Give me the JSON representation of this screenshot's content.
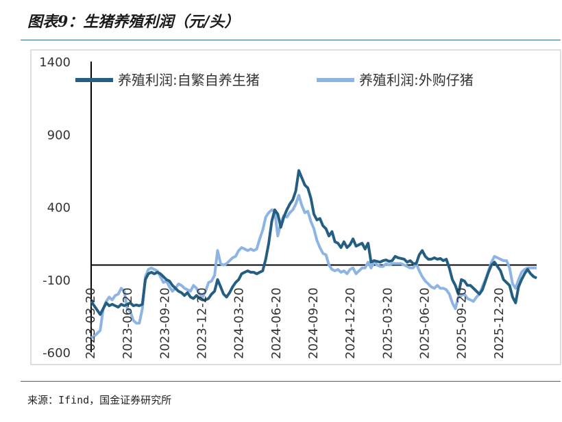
{
  "figure_title": "图表9：生猪养殖利润（元/头）",
  "source": "来源：Ifind，国金证券研究所",
  "colors": {
    "series_1": "#245e80",
    "series_2": "#8db4e2",
    "zero_line": "#000000",
    "frame": "#bfbfbf"
  },
  "chart_data": {
    "type": "line",
    "title": "生猪养殖利润（元/头）",
    "xlabel": "",
    "ylabel": "元/头",
    "ylim": [
      -600,
      1400
    ],
    "yticks": [
      1400,
      900,
      400,
      -100,
      -600
    ],
    "ytick_labels": [
      "1400",
      "900",
      "400",
      "-100",
      "-600"
    ],
    "xtick_labels": [
      "2023-03-20",
      "2023-06-20",
      "2023-09-20",
      "2023-12-20",
      "2024-03-20",
      "2024-06-20",
      "2024-09-20",
      "2024-12-20",
      "2025-03-20",
      "2025-06-20",
      "2025-09-20",
      "2025-12-20"
    ],
    "x_range_weeks": [
      0,
      148
    ],
    "series": [
      {
        "name": "养殖利润:自繁自养生猪",
        "points": [
          [
            0,
            -250
          ],
          [
            1,
            -280
          ],
          [
            2,
            -310
          ],
          [
            3,
            -340
          ],
          [
            4,
            -300
          ],
          [
            5,
            -260
          ],
          [
            6,
            -280
          ],
          [
            7,
            -270
          ],
          [
            8,
            -280
          ],
          [
            9,
            -290
          ],
          [
            10,
            -270
          ],
          [
            11,
            -280
          ],
          [
            12,
            -270
          ],
          [
            13,
            -260
          ],
          [
            14,
            -280
          ],
          [
            15,
            -275
          ],
          [
            16,
            -280
          ],
          [
            17,
            -270
          ],
          [
            18,
            -100
          ],
          [
            19,
            -60
          ],
          [
            20,
            -50
          ],
          [
            21,
            -60
          ],
          [
            22,
            -50
          ],
          [
            23,
            -60
          ],
          [
            24,
            -80
          ],
          [
            25,
            -100
          ],
          [
            26,
            -110
          ],
          [
            27,
            -140
          ],
          [
            28,
            -160
          ],
          [
            29,
            -180
          ],
          [
            30,
            -190
          ],
          [
            31,
            -210
          ],
          [
            32,
            -190
          ],
          [
            33,
            -220
          ],
          [
            34,
            -230
          ],
          [
            35,
            -210
          ],
          [
            36,
            -230
          ],
          [
            37,
            -240
          ],
          [
            38,
            -240
          ],
          [
            39,
            -230
          ],
          [
            40,
            -200
          ],
          [
            41,
            -180
          ],
          [
            42,
            -100
          ],
          [
            43,
            -150
          ],
          [
            44,
            -200
          ],
          [
            45,
            -220
          ],
          [
            46,
            -190
          ],
          [
            47,
            -150
          ],
          [
            48,
            -120
          ],
          [
            49,
            -100
          ],
          [
            50,
            -60
          ],
          [
            51,
            -50
          ],
          [
            52,
            -40
          ],
          [
            53,
            -50
          ],
          [
            54,
            -50
          ],
          [
            55,
            -60
          ],
          [
            56,
            -50
          ],
          [
            57,
            -40
          ],
          [
            58,
            40
          ],
          [
            59,
            150
          ],
          [
            60,
            300
          ],
          [
            61,
            380
          ],
          [
            62,
            350
          ],
          [
            63,
            260
          ],
          [
            64,
            330
          ],
          [
            65,
            380
          ],
          [
            66,
            420
          ],
          [
            67,
            450
          ],
          [
            68,
            510
          ],
          [
            69,
            650
          ],
          [
            70,
            600
          ],
          [
            71,
            550
          ],
          [
            72,
            530
          ],
          [
            73,
            460
          ],
          [
            74,
            350
          ],
          [
            75,
            310
          ],
          [
            76,
            320
          ],
          [
            77,
            270
          ],
          [
            78,
            250
          ],
          [
            79,
            200
          ],
          [
            80,
            230
          ],
          [
            81,
            160
          ],
          [
            82,
            150
          ],
          [
            83,
            120
          ],
          [
            84,
            160
          ],
          [
            85,
            120
          ],
          [
            86,
            140
          ],
          [
            87,
            180
          ],
          [
            88,
            130
          ],
          [
            89,
            140
          ],
          [
            90,
            150
          ],
          [
            91,
            110
          ],
          [
            92,
            150
          ],
          [
            93,
            20
          ],
          [
            94,
            30
          ],
          [
            95,
            25
          ],
          [
            96,
            20
          ],
          [
            97,
            30
          ],
          [
            98,
            35
          ],
          [
            99,
            25
          ],
          [
            100,
            30
          ],
          [
            101,
            60
          ],
          [
            102,
            50
          ],
          [
            103,
            45
          ],
          [
            104,
            40
          ],
          [
            105,
            20
          ],
          [
            106,
            30
          ],
          [
            107,
            10
          ],
          [
            108,
            10
          ],
          [
            109,
            70
          ],
          [
            110,
            100
          ],
          [
            111,
            60
          ],
          [
            112,
            40
          ],
          [
            113,
            40
          ],
          [
            114,
            50
          ],
          [
            115,
            40
          ],
          [
            116,
            45
          ],
          [
            117,
            30
          ],
          [
            118,
            40
          ],
          [
            119,
            -20
          ],
          [
            120,
            -100
          ],
          [
            121,
            -140
          ],
          [
            122,
            -200
          ],
          [
            123,
            -100
          ],
          [
            124,
            -110
          ],
          [
            125,
            -140
          ],
          [
            126,
            -140
          ],
          [
            127,
            -160
          ],
          [
            128,
            -180
          ],
          [
            129,
            -200
          ],
          [
            130,
            -170
          ],
          [
            131,
            -110
          ],
          [
            132,
            -50
          ],
          [
            133,
            0
          ],
          [
            134,
            20
          ],
          [
            135,
            -10
          ],
          [
            136,
            -40
          ],
          [
            137,
            -100
          ],
          [
            138,
            -120
          ],
          [
            139,
            -140
          ],
          [
            140,
            -220
          ],
          [
            141,
            -260
          ],
          [
            142,
            -150
          ],
          [
            143,
            -100
          ],
          [
            144,
            -60
          ],
          [
            145,
            -30
          ],
          [
            146,
            -60
          ],
          [
            147,
            -80
          ],
          [
            148,
            -90
          ]
        ]
      },
      {
        "name": "养殖利润:外购仔猪",
        "points": [
          [
            0,
            -500
          ],
          [
            1,
            -490
          ],
          [
            2,
            -470
          ],
          [
            3,
            -450
          ],
          [
            4,
            -300
          ],
          [
            5,
            -250
          ],
          [
            6,
            -220
          ],
          [
            7,
            -240
          ],
          [
            8,
            -210
          ],
          [
            9,
            -200
          ],
          [
            10,
            -160
          ],
          [
            11,
            -180
          ],
          [
            12,
            -300
          ],
          [
            13,
            -320
          ],
          [
            14,
            -380
          ],
          [
            15,
            -400
          ],
          [
            16,
            -400
          ],
          [
            17,
            -300
          ],
          [
            18,
            -80
          ],
          [
            19,
            -30
          ],
          [
            20,
            -20
          ],
          [
            21,
            -30
          ],
          [
            22,
            -40
          ],
          [
            23,
            -80
          ],
          [
            24,
            -120
          ],
          [
            25,
            -110
          ],
          [
            26,
            -150
          ],
          [
            27,
            -180
          ],
          [
            28,
            -160
          ],
          [
            29,
            -130
          ],
          [
            30,
            -140
          ],
          [
            31,
            -160
          ],
          [
            32,
            -170
          ],
          [
            33,
            -180
          ],
          [
            34,
            -140
          ],
          [
            35,
            -160
          ],
          [
            36,
            -200
          ],
          [
            37,
            -220
          ],
          [
            38,
            -180
          ],
          [
            39,
            -120
          ],
          [
            40,
            -110
          ],
          [
            41,
            -70
          ],
          [
            42,
            100
          ],
          [
            43,
            10
          ],
          [
            44,
            0
          ],
          [
            45,
            10
          ],
          [
            46,
            30
          ],
          [
            47,
            50
          ],
          [
            48,
            60
          ],
          [
            49,
            100
          ],
          [
            50,
            120
          ],
          [
            51,
            110
          ],
          [
            52,
            100
          ],
          [
            53,
            110
          ],
          [
            54,
            100
          ],
          [
            55,
            110
          ],
          [
            56,
            180
          ],
          [
            57,
            240
          ],
          [
            58,
            330
          ],
          [
            59,
            360
          ],
          [
            60,
            380
          ],
          [
            61,
            370
          ],
          [
            62,
            200
          ],
          [
            63,
            290
          ],
          [
            64,
            340
          ],
          [
            65,
            330
          ],
          [
            66,
            360
          ],
          [
            67,
            380
          ],
          [
            68,
            420
          ],
          [
            69,
            480
          ],
          [
            70,
            410
          ],
          [
            71,
            360
          ],
          [
            72,
            370
          ],
          [
            73,
            300
          ],
          [
            74,
            250
          ],
          [
            75,
            170
          ],
          [
            76,
            120
          ],
          [
            77,
            80
          ],
          [
            78,
            70
          ],
          [
            79,
            0
          ],
          [
            80,
            -30
          ],
          [
            81,
            -40
          ],
          [
            82,
            -30
          ],
          [
            83,
            -50
          ],
          [
            84,
            -40
          ],
          [
            85,
            -60
          ],
          [
            86,
            -30
          ],
          [
            87,
            -20
          ],
          [
            88,
            -60
          ],
          [
            89,
            -40
          ],
          [
            90,
            -20
          ],
          [
            91,
            -20
          ],
          [
            92,
            20
          ],
          [
            93,
            -20
          ],
          [
            94,
            20
          ],
          [
            95,
            0
          ],
          [
            96,
            -10
          ],
          [
            97,
            -10
          ],
          [
            98,
            10
          ],
          [
            99,
            0
          ],
          [
            100,
            10
          ],
          [
            101,
            10
          ],
          [
            102,
            10
          ],
          [
            103,
            10
          ],
          [
            104,
            0
          ],
          [
            105,
            -10
          ],
          [
            106,
            -20
          ],
          [
            107,
            -20
          ],
          [
            108,
            10
          ],
          [
            109,
            -40
          ],
          [
            110,
            -80
          ],
          [
            111,
            -110
          ],
          [
            112,
            -130
          ],
          [
            113,
            -150
          ],
          [
            114,
            -160
          ],
          [
            115,
            -140
          ],
          [
            116,
            -160
          ],
          [
            117,
            -160
          ],
          [
            118,
            -170
          ],
          [
            119,
            -200
          ],
          [
            120,
            -260
          ],
          [
            121,
            -300
          ],
          [
            122,
            -220
          ],
          [
            123,
            -210
          ],
          [
            124,
            -200
          ],
          [
            125,
            -230
          ],
          [
            126,
            -240
          ],
          [
            127,
            -250
          ],
          [
            128,
            -220
          ],
          [
            129,
            -200
          ],
          [
            130,
            -150
          ],
          [
            131,
            -100
          ],
          [
            132,
            -40
          ],
          [
            133,
            20
          ],
          [
            134,
            60
          ],
          [
            135,
            50
          ],
          [
            136,
            40
          ],
          [
            137,
            30
          ],
          [
            138,
            30
          ],
          [
            139,
            -20
          ],
          [
            140,
            -130
          ],
          [
            141,
            -160
          ],
          [
            142,
            -100
          ],
          [
            143,
            -50
          ],
          [
            144,
            -30
          ],
          [
            145,
            -20
          ],
          [
            146,
            -20
          ],
          [
            147,
            -20
          ],
          [
            148,
            -20
          ]
        ]
      }
    ],
    "legend": {
      "position": "top",
      "entries": [
        "养殖利润:自繁自养生猪",
        "养殖利润:外购仔猪"
      ]
    }
  }
}
